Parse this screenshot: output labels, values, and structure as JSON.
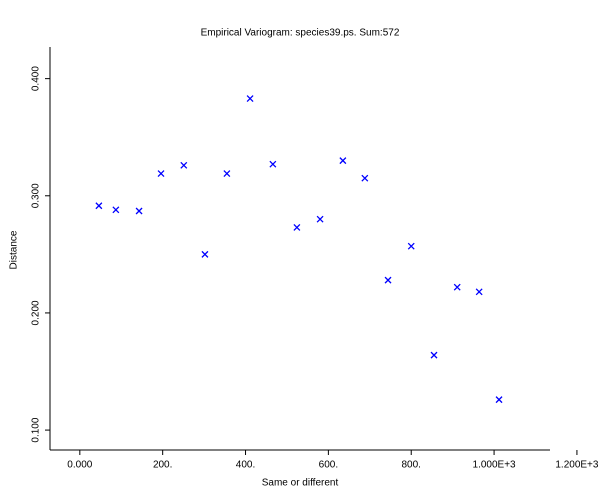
{
  "chart_data": {
    "type": "scatter",
    "title": "Empirical Variogram: species39.ps. Sum:572",
    "x_label": "Same or different",
    "y_label": "Distance",
    "color": "#0000ff",
    "x": [
      46,
      87,
      143,
      196,
      251,
      302,
      355,
      411,
      466,
      524,
      580,
      635,
      688,
      744,
      800,
      855,
      911,
      964,
      1012
    ],
    "values": [
      0.2915,
      0.288,
      0.287,
      0.319,
      0.326,
      0.25,
      0.319,
      0.383,
      0.327,
      0.273,
      0.28,
      0.33,
      0.315,
      0.228,
      0.257,
      0.164,
      0.222,
      0.218,
      0.126
    ],
    "xlim": [
      -72,
      1135
    ],
    "ylim": [
      0.083,
      0.427
    ],
    "xticks": [
      {
        "value": 0,
        "label": "0.000"
      },
      {
        "value": 200,
        "label": "200."
      },
      {
        "value": 400,
        "label": "400."
      },
      {
        "value": 600,
        "label": "600."
      },
      {
        "value": 800,
        "label": "800."
      },
      {
        "value": 1000,
        "label": "1.000E+3"
      },
      {
        "value": 1200,
        "label": "1.200E+3"
      }
    ],
    "yticks": [
      {
        "value": 0.1,
        "label": "0.100"
      },
      {
        "value": 0.2,
        "label": "0.200"
      },
      {
        "value": 0.3,
        "label": "0.300"
      },
      {
        "value": 0.4,
        "label": "0.400"
      }
    ]
  }
}
